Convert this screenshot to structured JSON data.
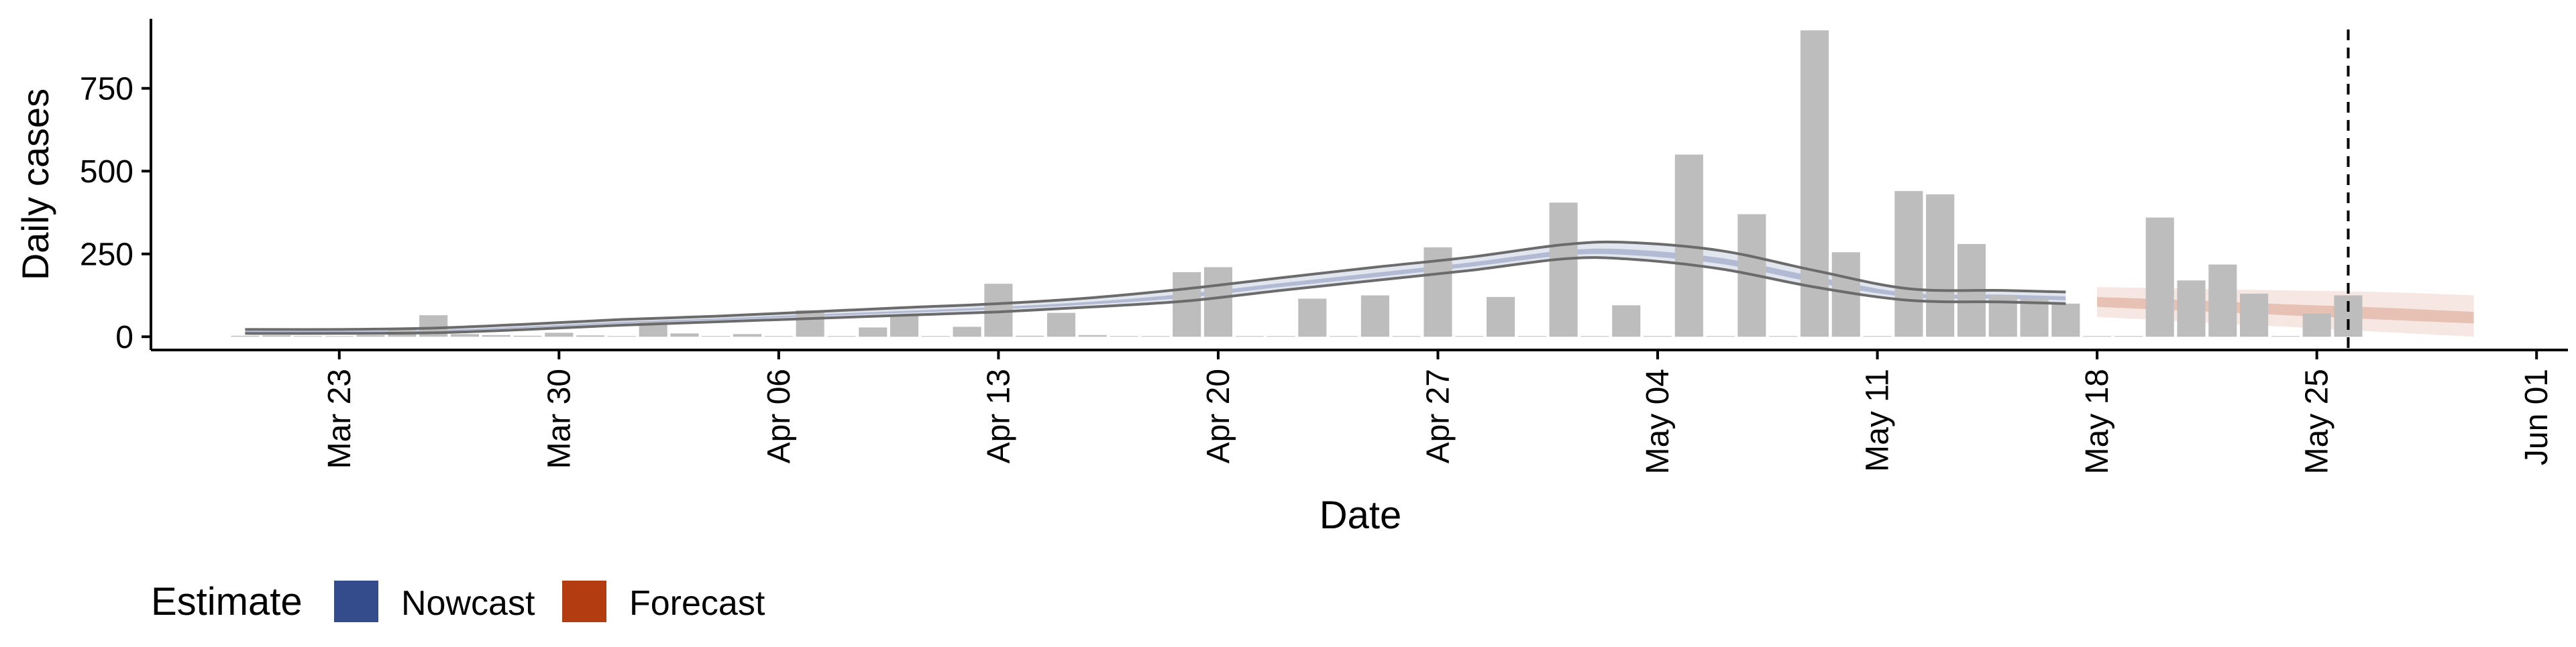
{
  "chart_data": {
    "type": "bar",
    "xlabel": "Date",
    "ylabel": "Daily cases",
    "ylim": [
      -40,
      960
    ],
    "xlim": [
      "2020-03-17",
      "2020-06-02"
    ],
    "y_ticks": [
      0,
      250,
      500,
      750
    ],
    "x_ticks": [
      {
        "date": "2020-03-23",
        "label": "Mar 23"
      },
      {
        "date": "2020-03-30",
        "label": "Mar 30"
      },
      {
        "date": "2020-04-06",
        "label": "Apr 06"
      },
      {
        "date": "2020-04-13",
        "label": "Apr 13"
      },
      {
        "date": "2020-04-20",
        "label": "Apr 20"
      },
      {
        "date": "2020-04-27",
        "label": "Apr 27"
      },
      {
        "date": "2020-05-04",
        "label": "May 04"
      },
      {
        "date": "2020-05-11",
        "label": "May 11"
      },
      {
        "date": "2020-05-18",
        "label": "May 18"
      },
      {
        "date": "2020-05-25",
        "label": "May 25"
      },
      {
        "date": "2020-06-01",
        "label": "Jun 01"
      }
    ],
    "bars": {
      "color": "#bdbdbd",
      "dates": [
        "2020-03-20",
        "2020-03-21",
        "2020-03-22",
        "2020-03-23",
        "2020-03-24",
        "2020-03-25",
        "2020-03-26",
        "2020-03-27",
        "2020-03-28",
        "2020-03-29",
        "2020-03-30",
        "2020-03-31",
        "2020-04-01",
        "2020-04-02",
        "2020-04-03",
        "2020-04-04",
        "2020-04-05",
        "2020-04-06",
        "2020-04-07",
        "2020-04-08",
        "2020-04-09",
        "2020-04-10",
        "2020-04-11",
        "2020-04-12",
        "2020-04-13",
        "2020-04-14",
        "2020-04-15",
        "2020-04-16",
        "2020-04-17",
        "2020-04-18",
        "2020-04-19",
        "2020-04-20",
        "2020-04-21",
        "2020-04-22",
        "2020-04-23",
        "2020-04-24",
        "2020-04-25",
        "2020-04-26",
        "2020-04-27",
        "2020-04-28",
        "2020-04-29",
        "2020-04-30",
        "2020-05-01",
        "2020-05-02",
        "2020-05-03",
        "2020-05-04",
        "2020-05-05",
        "2020-05-06",
        "2020-05-07",
        "2020-05-08",
        "2020-05-09",
        "2020-05-10",
        "2020-05-11",
        "2020-05-12",
        "2020-05-13",
        "2020-05-14",
        "2020-05-15",
        "2020-05-16",
        "2020-05-17",
        "2020-05-18",
        "2020-05-19",
        "2020-05-20",
        "2020-05-21",
        "2020-05-22",
        "2020-05-23",
        "2020-05-24",
        "2020-05-25",
        "2020-05-26"
      ],
      "values": [
        3,
        4,
        2,
        2,
        5,
        25,
        65,
        8,
        5,
        3,
        12,
        4,
        2,
        45,
        10,
        2,
        8,
        2,
        80,
        2,
        28,
        65,
        2,
        30,
        160,
        3,
        72,
        5,
        2,
        2,
        195,
        210,
        2,
        2,
        115,
        2,
        125,
        2,
        270,
        2,
        120,
        2,
        405,
        2,
        95,
        2,
        550,
        2,
        370,
        2,
        925,
        255,
        2,
        440,
        430,
        280,
        125,
        115,
        100,
        2,
        2,
        360,
        170,
        218,
        130,
        2,
        70,
        125
      ]
    },
    "series": [
      {
        "name": "Nowcast",
        "color": "#354c8c",
        "dates": [
          "2020-03-20",
          "2020-03-23",
          "2020-03-26",
          "2020-03-29",
          "2020-04-01",
          "2020-04-04",
          "2020-04-07",
          "2020-04-10",
          "2020-04-13",
          "2020-04-16",
          "2020-04-19",
          "2020-04-22",
          "2020-04-25",
          "2020-04-28",
          "2020-05-01",
          "2020-05-03",
          "2020-05-06",
          "2020-05-09",
          "2020-05-12",
          "2020-05-15",
          "2020-05-17"
        ],
        "upper": [
          22,
          22,
          26,
          38,
          52,
          62,
          75,
          88,
          100,
          118,
          145,
          178,
          210,
          240,
          278,
          285,
          260,
          200,
          145,
          140,
          135
        ],
        "lower": [
          10,
          10,
          12,
          22,
          35,
          45,
          55,
          65,
          75,
          90,
          108,
          140,
          170,
          200,
          235,
          235,
          205,
          150,
          110,
          105,
          100
        ],
        "inner_upper": [
          17,
          17,
          20,
          31,
          45,
          55,
          67,
          78,
          90,
          106,
          130,
          162,
          193,
          224,
          260,
          264,
          238,
          182,
          132,
          127,
          122
        ],
        "inner_lower": [
          14,
          14,
          16,
          27,
          40,
          50,
          61,
          72,
          83,
          98,
          118,
          150,
          180,
          211,
          245,
          247,
          220,
          164,
          120,
          115,
          110
        ]
      },
      {
        "name": "Forecast",
        "color": "#b33c10",
        "dates": [
          "2020-05-18",
          "2020-05-21",
          "2020-05-24",
          "2020-05-27",
          "2020-05-30"
        ],
        "upper": [
          150,
          145,
          140,
          135,
          125
        ],
        "lower": [
          60,
          45,
          30,
          15,
          0
        ],
        "inner_upper": [
          120,
          110,
          98,
          88,
          75
        ],
        "inner_lower": [
          90,
          78,
          65,
          52,
          40
        ]
      }
    ],
    "vline_date": "2020-05-26",
    "legend": {
      "title": "Estimate",
      "position": "bottom-left",
      "items": [
        {
          "label": "Nowcast",
          "color": "#354c8c"
        },
        {
          "label": "Forecast",
          "color": "#b33c10"
        }
      ]
    }
  }
}
